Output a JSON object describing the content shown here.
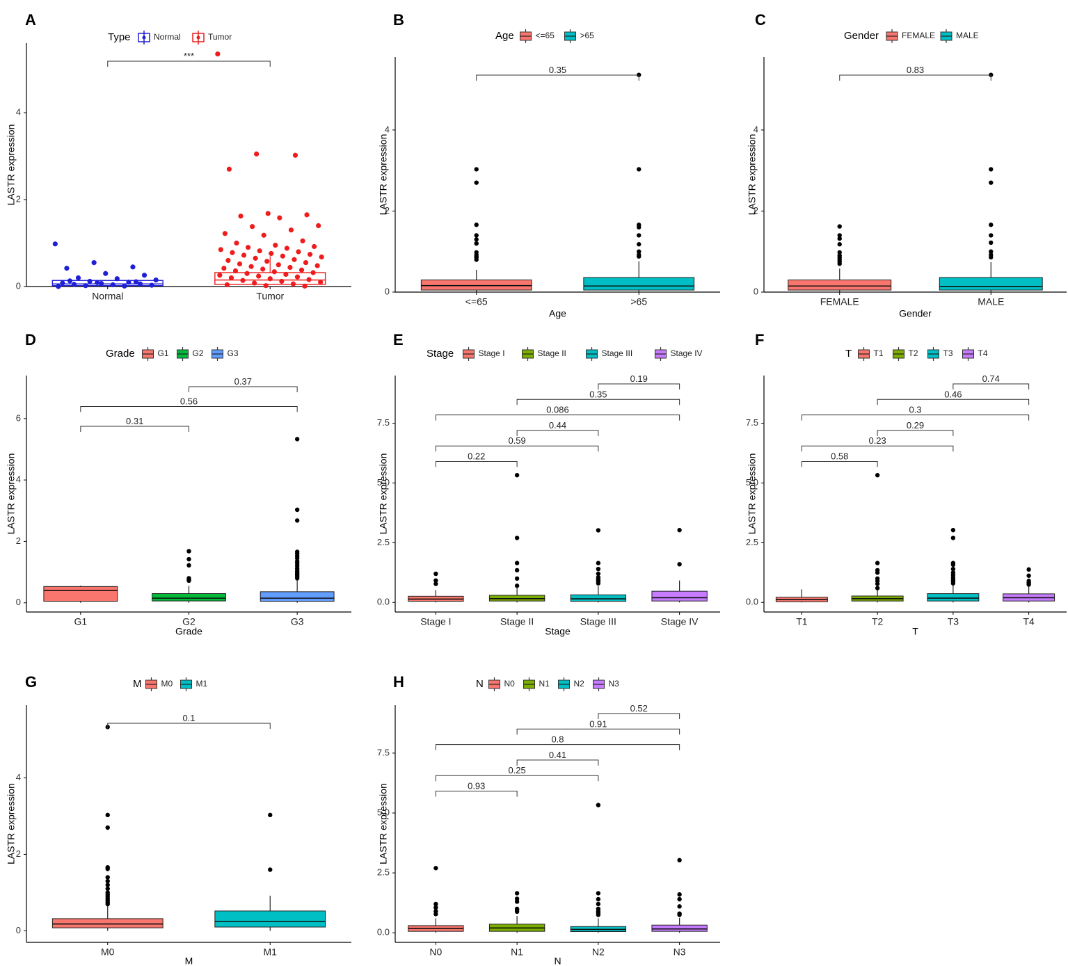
{
  "figure": {
    "domain": "Chart"
  },
  "chart_data": [
    {
      "panel": "A",
      "type": "box",
      "box_style": "outline",
      "legend_title": "Type",
      "ylabel": "LASTR expression",
      "xlabel": "",
      "ylim": [
        0,
        5.6
      ],
      "yticks": [
        0,
        2,
        4
      ],
      "groups": [
        {
          "name": "Normal",
          "color": "#1f1fd6",
          "q1": 0.02,
          "median": 0.06,
          "q3": 0.14,
          "whisker_low": 0.0,
          "whisker_high": 0.14,
          "points": [
            0.98,
            0.55,
            0.45,
            0.42,
            0.3,
            0.26,
            0.2,
            0.18,
            0.15,
            0.12,
            0.1,
            0.08,
            0.07,
            0.06,
            0.05,
            0.04,
            0.03,
            0.02,
            0.01,
            0.0,
            0.09,
            0.11,
            0.13
          ]
        },
        {
          "name": "Tumor",
          "color": "#ee1c1c",
          "q1": 0.05,
          "median": 0.15,
          "q3": 0.32,
          "whisker_low": 0.0,
          "whisker_high": 0.7,
          "points": [
            5.35,
            3.05,
            3.02,
            2.7,
            1.68,
            1.65,
            1.62,
            1.58,
            1.4,
            1.38,
            1.3,
            1.22,
            1.18,
            1.05,
            1.0,
            0.95,
            0.92,
            0.9,
            0.88,
            0.85,
            0.82,
            0.8,
            0.78,
            0.76,
            0.74,
            0.72,
            0.7,
            0.68,
            0.65,
            0.62,
            0.6,
            0.58,
            0.55,
            0.52,
            0.5,
            0.48,
            0.46,
            0.44,
            0.42,
            0.4,
            0.38,
            0.36,
            0.34,
            0.32,
            0.3,
            0.28,
            0.26,
            0.24,
            0.22,
            0.2,
            0.18,
            0.16,
            0.14,
            0.12,
            0.1,
            0.08,
            0.06,
            0.04,
            0.02,
            0.01
          ]
        }
      ],
      "comparisons": [
        {
          "from": "Normal",
          "to": "Tumor",
          "label": "***"
        }
      ]
    },
    {
      "panel": "B",
      "type": "box",
      "legend_title": "Age",
      "ylabel": "LASTR expression",
      "xlabel": "Age",
      "ylim": [
        0,
        5.8
      ],
      "yticks": [
        0,
        2,
        4
      ],
      "groups": [
        {
          "name": "<=65",
          "color": "#f8766d",
          "q1": 0.05,
          "median": 0.16,
          "q3": 0.3,
          "whisker_low": 0.0,
          "whisker_high": 0.55,
          "outliers": [
            3.03,
            2.7,
            1.66,
            1.4,
            1.3,
            1.2,
            0.98,
            0.92,
            0.88,
            0.85,
            0.8
          ]
        },
        {
          "name": ">65",
          "color": "#00bfc4",
          "q1": 0.05,
          "median": 0.15,
          "q3": 0.36,
          "whisker_low": 0.0,
          "whisker_high": 0.76,
          "outliers": [
            5.36,
            3.03,
            1.66,
            1.6,
            1.4,
            1.18,
            1.0,
            0.92,
            0.88
          ]
        }
      ],
      "comparisons": [
        {
          "from": "<=65",
          "to": ">65",
          "label": "0.35"
        }
      ]
    },
    {
      "panel": "C",
      "type": "box",
      "legend_title": "Gender",
      "ylabel": "LASTR expression",
      "xlabel": "Gender",
      "ylim": [
        0,
        5.8
      ],
      "yticks": [
        0,
        2,
        4
      ],
      "groups": [
        {
          "name": "FEMALE",
          "color": "#f8766d",
          "q1": 0.05,
          "median": 0.15,
          "q3": 0.3,
          "whisker_low": 0.0,
          "whisker_high": 0.58,
          "outliers": [
            1.62,
            1.4,
            1.32,
            1.18,
            0.98,
            0.9,
            0.85,
            0.8,
            0.75,
            0.7
          ]
        },
        {
          "name": "MALE",
          "color": "#00bfc4",
          "q1": 0.05,
          "median": 0.14,
          "q3": 0.36,
          "whisker_low": 0.0,
          "whisker_high": 0.74,
          "outliers": [
            5.36,
            3.03,
            2.7,
            1.66,
            1.4,
            1.22,
            1.0,
            0.92,
            0.86
          ]
        }
      ],
      "comparisons": [
        {
          "from": "FEMALE",
          "to": "MALE",
          "label": "0.83"
        }
      ]
    },
    {
      "panel": "D",
      "type": "box",
      "legend_title": "Grade",
      "ylabel": "LASTR expression",
      "xlabel": "Grade",
      "ylim": [
        -0.3,
        7.4
      ],
      "yticks": [
        0,
        2,
        4,
        6
      ],
      "groups": [
        {
          "name": "G1",
          "color": "#f8766d",
          "q1": 0.05,
          "median": 0.4,
          "q3": 0.53,
          "whisker_low": 0.0,
          "whisker_high": 0.56,
          "outliers": []
        },
        {
          "name": "G2",
          "color": "#00ba38",
          "q1": 0.06,
          "median": 0.15,
          "q3": 0.3,
          "whisker_low": 0.0,
          "whisker_high": 0.55,
          "outliers": [
            1.68,
            1.42,
            1.22,
            0.8,
            0.75,
            0.72
          ]
        },
        {
          "name": "G3",
          "color": "#619cff",
          "q1": 0.05,
          "median": 0.15,
          "q3": 0.36,
          "whisker_low": 0.0,
          "whisker_high": 0.78,
          "outliers": [
            5.33,
            3.03,
            2.68,
            1.66,
            1.6,
            1.52,
            1.45,
            1.35,
            1.28,
            1.2,
            1.12,
            1.05,
            1.0,
            0.95,
            0.9,
            0.85,
            0.8
          ]
        }
      ],
      "comparisons": [
        {
          "from": "G1",
          "to": "G2",
          "label": "0.31"
        },
        {
          "from": "G1",
          "to": "G3",
          "label": "0.56"
        },
        {
          "from": "G2",
          "to": "G3",
          "label": "0.37"
        }
      ]
    },
    {
      "panel": "E",
      "type": "box",
      "legend_title": "Stage",
      "ylabel": "LASTR expression",
      "xlabel": "Stage",
      "ylim": [
        -0.4,
        9.5
      ],
      "yticks": [
        0,
        2.5,
        5,
        7.5
      ],
      "ytick_labels": [
        "0.0",
        "2.5",
        "5.0",
        "7.5"
      ],
      "groups": [
        {
          "name": "Stage I",
          "color": "#f8766d",
          "q1": 0.05,
          "median": 0.14,
          "q3": 0.26,
          "whisker_low": 0.0,
          "whisker_high": 0.52,
          "outliers": [
            1.2,
            0.92,
            0.78
          ]
        },
        {
          "name": "Stage II",
          "color": "#7cae00",
          "q1": 0.06,
          "median": 0.16,
          "q3": 0.3,
          "whisker_low": 0.0,
          "whisker_high": 0.6,
          "outliers": [
            5.33,
            2.7,
            1.65,
            1.35,
            1.0,
            0.7
          ]
        },
        {
          "name": "Stage III",
          "color": "#00bfc4",
          "q1": 0.05,
          "median": 0.15,
          "q3": 0.32,
          "whisker_low": 0.0,
          "whisker_high": 0.68,
          "outliers": [
            3.02,
            1.65,
            1.4,
            1.2,
            1.05,
            0.95,
            0.88,
            0.8
          ]
        },
        {
          "name": "Stage IV",
          "color": "#c77cff",
          "q1": 0.06,
          "median": 0.2,
          "q3": 0.47,
          "whisker_low": 0.0,
          "whisker_high": 0.92,
          "outliers": [
            3.03,
            1.6
          ]
        }
      ],
      "comparisons": [
        {
          "from": "Stage I",
          "to": "Stage II",
          "label": "0.22"
        },
        {
          "from": "Stage I",
          "to": "Stage III",
          "label": "0.59"
        },
        {
          "from": "Stage I",
          "to": "Stage IV",
          "label": "0.086"
        },
        {
          "from": "Stage II",
          "to": "Stage III",
          "label": "0.44"
        },
        {
          "from": "Stage II",
          "to": "Stage IV",
          "label": "0.35"
        },
        {
          "from": "Stage III",
          "to": "Stage IV",
          "label": "0.19"
        }
      ]
    },
    {
      "panel": "F",
      "type": "box",
      "legend_title": "T",
      "ylabel": "LASTR expression",
      "xlabel": "T",
      "ylim": [
        -0.4,
        9.5
      ],
      "yticks": [
        0,
        2.5,
        5,
        7.5
      ],
      "ytick_labels": [
        "0.0",
        "2.5",
        "5.0",
        "7.5"
      ],
      "groups": [
        {
          "name": "T1",
          "color": "#f8766d",
          "q1": 0.03,
          "median": 0.12,
          "q3": 0.22,
          "whisker_low": 0.0,
          "whisker_high": 0.55,
          "outliers": []
        },
        {
          "name": "T2",
          "color": "#7cae00",
          "q1": 0.06,
          "median": 0.16,
          "q3": 0.27,
          "whisker_low": 0.0,
          "whisker_high": 0.55,
          "outliers": [
            5.33,
            1.65,
            1.35,
            1.25,
            1.0,
            0.9,
            0.78,
            0.6
          ]
        },
        {
          "name": "T3",
          "color": "#00bfc4",
          "q1": 0.06,
          "median": 0.18,
          "q3": 0.37,
          "whisker_low": 0.0,
          "whisker_high": 0.72,
          "outliers": [
            3.03,
            2.7,
            1.65,
            1.58,
            1.4,
            1.25,
            1.15,
            1.05,
            0.95,
            0.88,
            0.8
          ]
        },
        {
          "name": "T4",
          "color": "#c77cff",
          "q1": 0.06,
          "median": 0.2,
          "q3": 0.36,
          "whisker_low": 0.0,
          "whisker_high": 0.7,
          "outliers": [
            1.38,
            1.12,
            0.9,
            0.82,
            0.75
          ]
        }
      ],
      "comparisons": [
        {
          "from": "T1",
          "to": "T2",
          "label": "0.58"
        },
        {
          "from": "T1",
          "to": "T3",
          "label": "0.23"
        },
        {
          "from": "T1",
          "to": "T4",
          "label": "0.3"
        },
        {
          "from": "T2",
          "to": "T3",
          "label": "0.29"
        },
        {
          "from": "T2",
          "to": "T4",
          "label": "0.46"
        },
        {
          "from": "T3",
          "to": "T4",
          "label": "0.74"
        }
      ]
    },
    {
      "panel": "G",
      "type": "box",
      "legend_title": "M",
      "ylabel": "LASTR expression",
      "xlabel": "M",
      "ylim": [
        -0.3,
        5.9
      ],
      "yticks": [
        0,
        2,
        4
      ],
      "groups": [
        {
          "name": "M0",
          "color": "#f8766d",
          "q1": 0.08,
          "median": 0.18,
          "q3": 0.32,
          "whisker_low": 0.0,
          "whisker_high": 0.65,
          "outliers": [
            5.33,
            3.03,
            2.7,
            1.66,
            1.62,
            1.4,
            1.3,
            1.2,
            1.1,
            1.0,
            0.95,
            0.9,
            0.85,
            0.8,
            0.75,
            0.7
          ]
        },
        {
          "name": "M1",
          "color": "#00bfc4",
          "q1": 0.1,
          "median": 0.25,
          "q3": 0.52,
          "whisker_low": 0.0,
          "whisker_high": 0.92,
          "outliers": [
            3.03,
            1.6
          ]
        }
      ],
      "comparisons": [
        {
          "from": "M0",
          "to": "M1",
          "label": "0.1"
        }
      ]
    },
    {
      "panel": "H",
      "type": "box",
      "legend_title": "N",
      "ylabel": "LASTR expression",
      "xlabel": "N",
      "ylim": [
        -0.4,
        9.5
      ],
      "yticks": [
        0,
        2.5,
        5,
        7.5
      ],
      "ytick_labels": [
        "0.0",
        "2.5",
        "5.0",
        "7.5"
      ],
      "groups": [
        {
          "name": "N0",
          "color": "#f8766d",
          "q1": 0.06,
          "median": 0.18,
          "q3": 0.3,
          "whisker_low": 0.0,
          "whisker_high": 0.6,
          "outliers": [
            2.7,
            1.2,
            1.05,
            0.9,
            0.78
          ]
        },
        {
          "name": "N1",
          "color": "#7cae00",
          "q1": 0.06,
          "median": 0.2,
          "q3": 0.36,
          "whisker_low": 0.0,
          "whisker_high": 0.7,
          "outliers": [
            1.65,
            1.42,
            1.3,
            1.0,
            0.95,
            0.88
          ]
        },
        {
          "name": "N2",
          "color": "#00bfc4",
          "q1": 0.05,
          "median": 0.14,
          "q3": 0.26,
          "whisker_low": 0.0,
          "whisker_high": 0.6,
          "outliers": [
            5.33,
            1.65,
            1.4,
            1.2,
            1.0,
            0.9,
            0.82,
            0.75
          ]
        },
        {
          "name": "N3",
          "color": "#c77cff",
          "q1": 0.06,
          "median": 0.16,
          "q3": 0.32,
          "whisker_low": 0.0,
          "whisker_high": 0.62,
          "outliers": [
            3.03,
            1.6,
            1.4,
            1.1,
            0.8,
            0.75
          ]
        }
      ],
      "comparisons": [
        {
          "from": "N0",
          "to": "N1",
          "label": "0.93"
        },
        {
          "from": "N0",
          "to": "N2",
          "label": "0.25"
        },
        {
          "from": "N0",
          "to": "N3",
          "label": "0.8"
        },
        {
          "from": "N1",
          "to": "N2",
          "label": "0.41"
        },
        {
          "from": "N1",
          "to": "N3",
          "label": "0.91"
        },
        {
          "from": "N2",
          "to": "N3",
          "label": "0.52"
        }
      ]
    }
  ]
}
